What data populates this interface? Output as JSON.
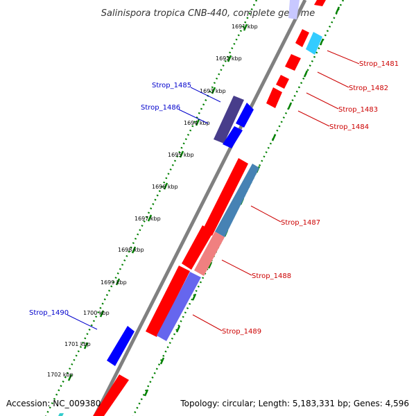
{
  "title": "Salinispora tropica CNB-440, complete genome",
  "accession": "Accession: NC_009380",
  "topology": "Topology: circular; Length: 5,183,331 bp; Genes: 4,596",
  "kbp_labels": [
    "1691 kbp",
    "1692 kbp",
    "1693 kbp",
    "1694 kbp",
    "1695 kbp",
    "1696 kbp",
    "1697 kbp",
    "1698 kbp",
    "1699 kbp",
    "1700 kbp",
    "1701 kbp",
    "1702 kbp"
  ],
  "genes_right": [
    "Strop_1481",
    "Strop_1482",
    "Strop_1483",
    "Strop_1484",
    "Strop_1487",
    "Strop_1488",
    "Strop_1489"
  ],
  "genes_left": [
    "Strop_1485",
    "Strop_1486",
    "Strop_1490"
  ],
  "colors": {
    "forward": "#ff0000",
    "reverse": "#0000ff",
    "forward_label": "#cc0000",
    "reverse_label": "#0000cc",
    "backbone": "#808080",
    "ticks": "#008000"
  }
}
